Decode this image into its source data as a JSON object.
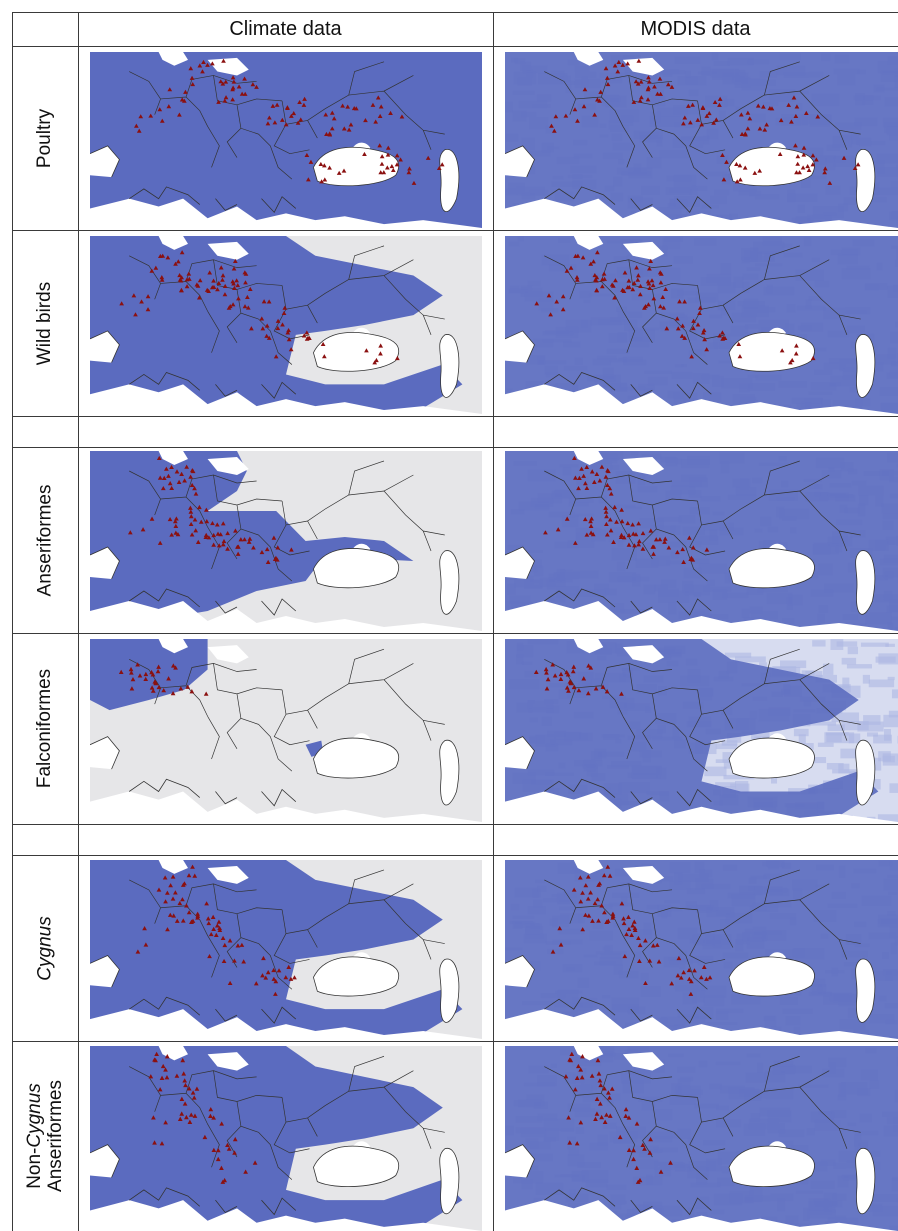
{
  "column_headers": [
    "Climate data",
    "MODIS data"
  ],
  "rows": [
    {
      "label": "Poultry",
      "label_italic": "",
      "label_line2": "",
      "climate_extent": "high",
      "modis_extent": "high",
      "points": "poultry"
    },
    {
      "label": "Wild birds",
      "label_italic": "",
      "label_line2": "",
      "climate_extent": "medium",
      "modis_extent": "high",
      "points": "wild"
    },
    {
      "label": "Anseriformes",
      "label_italic": "",
      "label_line2": "",
      "climate_extent": "low",
      "modis_extent": "high",
      "points": "anser"
    },
    {
      "label": "Falconiformes",
      "label_italic": "",
      "label_line2": "",
      "climate_extent": "minimal",
      "modis_extent": "medium",
      "points": "falco"
    },
    {
      "label": "",
      "label_italic": "Cygnus",
      "label_line2": "",
      "climate_extent": "medium",
      "modis_extent": "high",
      "points": "cygnus"
    },
    {
      "label": "Non-",
      "label_italic": "Cygnus",
      "label_line2": "Anseriformes",
      "climate_extent": "medium",
      "modis_extent": "high",
      "points": "noncyg"
    }
  ],
  "colors": {
    "suitable": "#5b6bbf",
    "modis_light": "#d7dcf0",
    "unsuitable": "#e6e6e8",
    "sea": "#ffffff",
    "points": "#8b1010",
    "borders": "#333333"
  }
}
